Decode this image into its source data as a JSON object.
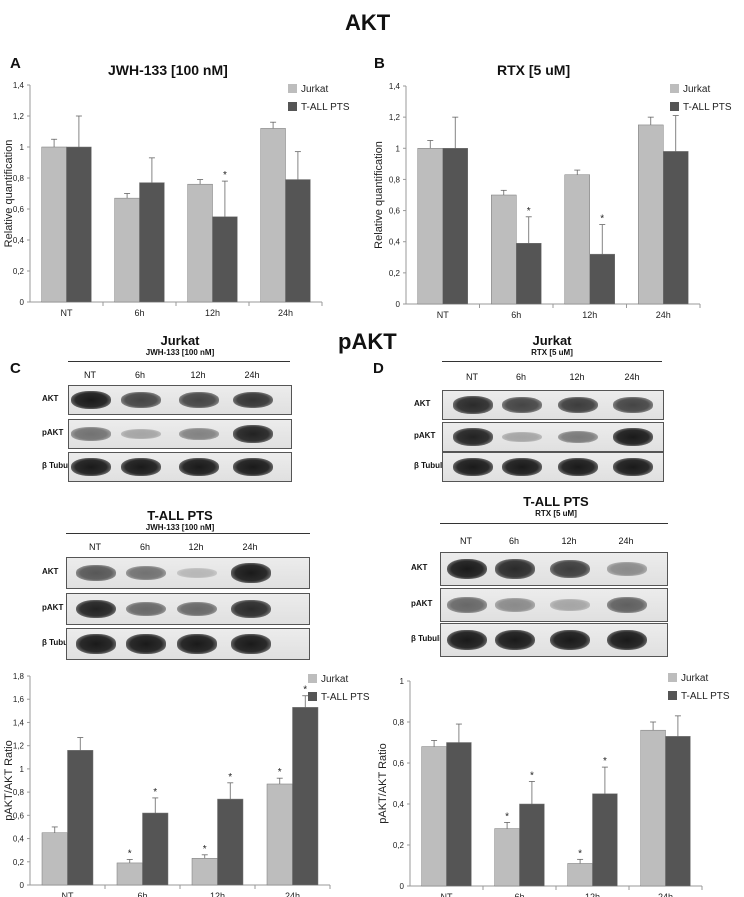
{
  "figure": {
    "title_akt": "AKT",
    "title_pakt": "pAKT",
    "letters": {
      "A": "A",
      "B": "B",
      "C": "C",
      "D": "D"
    }
  },
  "colors": {
    "jurkat": "#bdbdbd",
    "tall": "#555555"
  },
  "chart_data": [
    {
      "id": "A",
      "type": "bar",
      "title": "JWH-133 [100 nM]",
      "ylabel": "Relative quantification",
      "xlabel": "",
      "categories": [
        "NT",
        "6h",
        "12h",
        "24h"
      ],
      "ylim": [
        0,
        1.4
      ],
      "yticks": [
        "0",
        "0,2",
        "0,4",
        "0,6",
        "0,8",
        "1",
        "1,2",
        "1,4"
      ],
      "series": [
        {
          "name": "Jurkat",
          "values": [
            1.0,
            0.67,
            0.76,
            1.12
          ],
          "errors": [
            0.05,
            0.03,
            0.03,
            0.04
          ],
          "stars": [
            false,
            false,
            false,
            false
          ]
        },
        {
          "name": "T-ALL PTS",
          "values": [
            1.0,
            0.77,
            0.55,
            0.79
          ],
          "errors": [
            0.2,
            0.16,
            0.23,
            0.18
          ],
          "stars": [
            false,
            false,
            true,
            false
          ]
        }
      ],
      "legend": "top-right",
      "grid": false
    },
    {
      "id": "B",
      "type": "bar",
      "title": "RTX [5 uM]",
      "ylabel": "Relative quantification",
      "xlabel": "",
      "categories": [
        "NT",
        "6h",
        "12h",
        "24h"
      ],
      "ylim": [
        0,
        1.4
      ],
      "yticks": [
        "0",
        "0,2",
        "0,4",
        "0,6",
        "0,8",
        "1",
        "1,2",
        "1,4"
      ],
      "series": [
        {
          "name": "Jurkat",
          "values": [
            1.0,
            0.7,
            0.83,
            1.15
          ],
          "errors": [
            0.05,
            0.03,
            0.03,
            0.05
          ],
          "stars": [
            false,
            false,
            false,
            false
          ]
        },
        {
          "name": "T-ALL PTS",
          "values": [
            1.0,
            0.39,
            0.32,
            0.98
          ],
          "errors": [
            0.2,
            0.17,
            0.19,
            0.23
          ],
          "stars": [
            false,
            true,
            true,
            false
          ]
        }
      ],
      "legend": "top-right",
      "grid": false
    },
    {
      "id": "C",
      "type": "bar",
      "title": "",
      "ylabel": "pAKT/AKT Ratio",
      "xlabel": "",
      "categories": [
        "NT",
        "6h",
        "12h",
        "24h"
      ],
      "ylim": [
        0,
        1.8
      ],
      "yticks": [
        "0",
        "0,2",
        "0,4",
        "0,6",
        "0,8",
        "1",
        "1,2",
        "1,4",
        "1,6",
        "1,8"
      ],
      "series": [
        {
          "name": "Jurkat",
          "values": [
            0.45,
            0.19,
            0.23,
            0.87
          ],
          "errors": [
            0.05,
            0.03,
            0.03,
            0.05
          ],
          "stars": [
            false,
            true,
            true,
            true
          ]
        },
        {
          "name": "T-ALL PTS",
          "values": [
            1.16,
            0.62,
            0.74,
            1.53
          ],
          "errors": [
            0.11,
            0.13,
            0.14,
            0.1
          ],
          "stars": [
            false,
            true,
            true,
            true
          ]
        }
      ],
      "legend": "top-right",
      "grid": false
    },
    {
      "id": "D",
      "type": "bar",
      "title": "",
      "ylabel": "pAKT/AKT Ratio",
      "xlabel": "",
      "categories": [
        "NT",
        "6h",
        "12h",
        "24h"
      ],
      "ylim": [
        0,
        1
      ],
      "yticks": [
        "0",
        "0,2",
        "0,4",
        "0,6",
        "0,8",
        "1"
      ],
      "series": [
        {
          "name": "Jurkat",
          "values": [
            0.68,
            0.28,
            0.11,
            0.76
          ],
          "errors": [
            0.03,
            0.03,
            0.02,
            0.04
          ],
          "stars": [
            false,
            true,
            true,
            false
          ]
        },
        {
          "name": "T-ALL PTS",
          "values": [
            0.7,
            0.4,
            0.45,
            0.73
          ],
          "errors": [
            0.09,
            0.11,
            0.13,
            0.1
          ],
          "stars": [
            false,
            true,
            true,
            false
          ]
        }
      ],
      "legend": "top-right",
      "grid": false
    }
  ],
  "blots": {
    "c_jurkat": {
      "header": "Jurkat",
      "sub": "JWH-133 [100 nM]",
      "lanes": [
        "NT",
        "6h",
        "12h",
        "24h"
      ],
      "rows": [
        "AKT",
        "pAKT",
        "β Tubulin"
      ],
      "intensity": [
        [
          1.0,
          0.75,
          0.75,
          0.85
        ],
        [
          0.5,
          0.2,
          0.4,
          0.95
        ],
        [
          1.0,
          1.0,
          1.0,
          1.0
        ]
      ]
    },
    "c_tall": {
      "header": "T-ALL PTS",
      "sub": "JWH-133 [100 nM]",
      "lanes": [
        "NT",
        "6h",
        "12h",
        "24h"
      ],
      "rows": [
        "AKT",
        "pAKT",
        "β Tubulin"
      ],
      "intensity": [
        [
          0.65,
          0.5,
          0.1,
          1.0
        ],
        [
          0.95,
          0.55,
          0.55,
          0.9
        ],
        [
          1.0,
          1.0,
          1.0,
          1.0
        ]
      ]
    },
    "d_jurkat": {
      "header": "Jurkat",
      "sub": "RTX [5 uM]",
      "lanes": [
        "NT",
        "6h",
        "12h",
        "24h"
      ],
      "rows": [
        "AKT",
        "pAKT",
        "β Tubulin"
      ],
      "intensity": [
        [
          0.9,
          0.75,
          0.8,
          0.75
        ],
        [
          0.95,
          0.2,
          0.45,
          1.0
        ],
        [
          1.0,
          1.0,
          1.0,
          1.0
        ]
      ]
    },
    "d_tall": {
      "header": "T-ALL PTS",
      "sub": "RTX [5 uM]",
      "lanes": [
        "NT",
        "6h",
        "12h",
        "24h"
      ],
      "rows": [
        "AKT",
        "pAKT",
        "β Tubulin"
      ],
      "intensity": [
        [
          1.0,
          0.9,
          0.8,
          0.35
        ],
        [
          0.55,
          0.35,
          0.2,
          0.6
        ],
        [
          1.0,
          1.0,
          1.0,
          1.0
        ]
      ]
    }
  }
}
